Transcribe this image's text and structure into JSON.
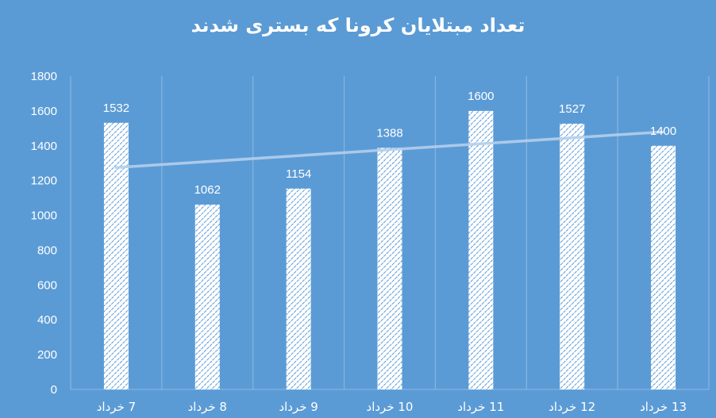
{
  "chart_data": {
    "type": "bar",
    "title": "تعداد مبتلایان کرونا که بستری شدند",
    "xlabel": "",
    "ylabel": "",
    "ylim": [
      0,
      1800
    ],
    "yticks": [
      0,
      200,
      400,
      600,
      800,
      1000,
      1200,
      1400,
      1600,
      1800
    ],
    "categories": [
      "7 خرداد",
      "8 خرداد",
      "9 خرداد",
      "10 خرداد",
      "11 خرداد",
      "12 خرداد",
      "13 خرداد"
    ],
    "series": [
      {
        "name": "بستری",
        "values": [
          1532,
          1062,
          1154,
          1388,
          1600,
          1527,
          1400
        ],
        "pattern": "diagonal-hatch",
        "color": "#ffffff"
      }
    ],
    "trendline": {
      "type": "linear",
      "start": 1275,
      "end": 1480,
      "color": "#b4cfee"
    },
    "grid": {
      "vertical": true,
      "horizontal": false
    },
    "data_labels": true,
    "legend": "none"
  },
  "colors": {
    "background": "#5b9bd5",
    "gridline": "#8fb9e4",
    "text": "#ffffff"
  }
}
